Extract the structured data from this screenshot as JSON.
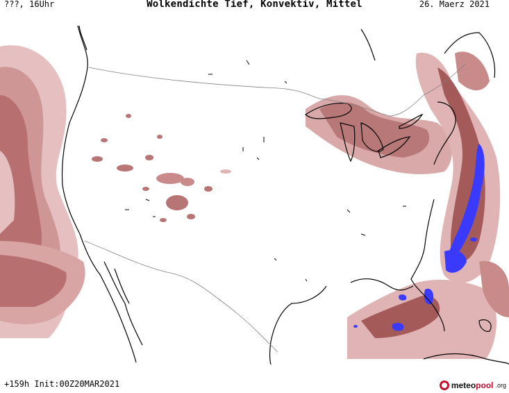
{
  "header": {
    "left": "???, 16Uhr",
    "title": "Wolkendichte   Tief, Konvektiv, Mittel",
    "date": "26. Maerz 2021"
  },
  "footer": {
    "run_info": "+159h  Init:00Z20MAR2021",
    "logo_main": "meteo",
    "logo_accent": "pool",
    "logo_tld": ".org"
  },
  "colors": {
    "cloud_light": "#e0b4b4",
    "cloud_mid": "#c98a8a",
    "cloud_dark": "#a55a5a",
    "convective": "#3a3aff",
    "coastline": "#000000",
    "border": "#808080"
  }
}
